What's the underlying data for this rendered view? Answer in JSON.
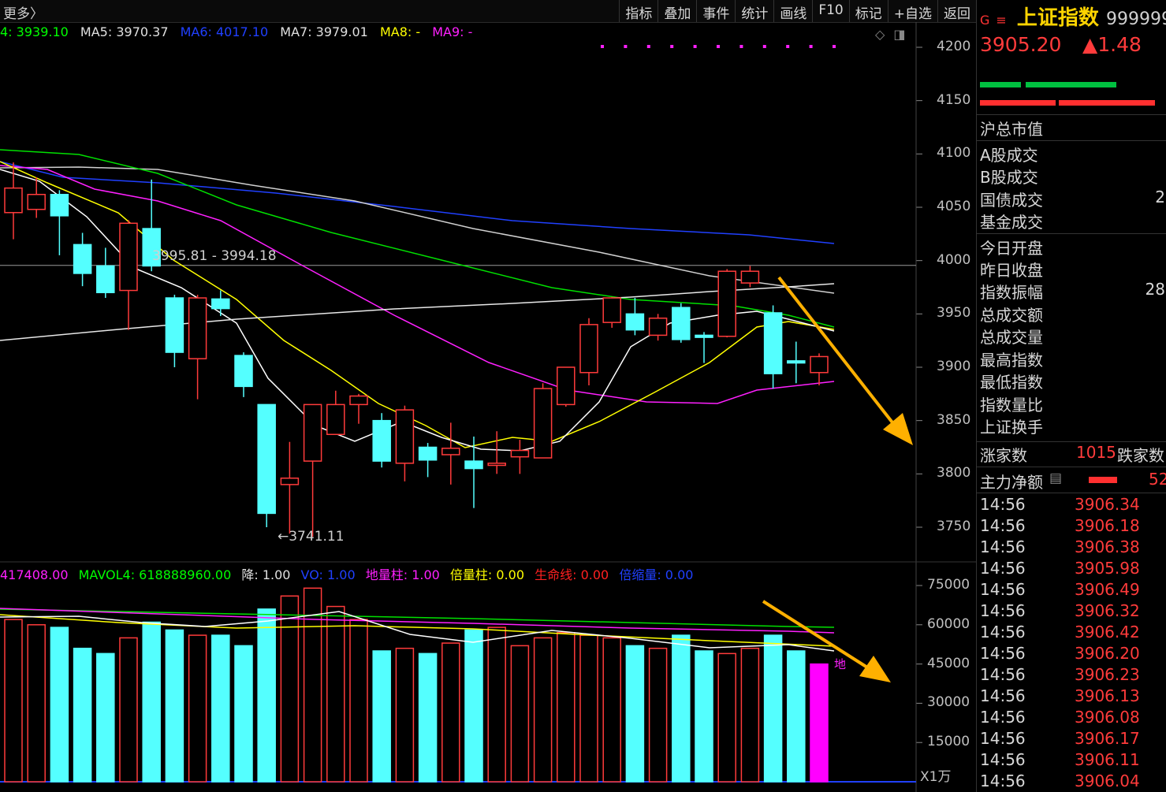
{
  "toolbar": {
    "more_label": "更多〉",
    "menu": [
      "指标",
      "叠加",
      "事件",
      "统计",
      "画线",
      "F10",
      "标记",
      "+自选",
      "返回"
    ]
  },
  "price_panel": {
    "ma_legend": [
      {
        "label": "4: 3939.10",
        "color": "#00ff00"
      },
      {
        "label": "MA5: 3970.37",
        "color": "#e0e0e0"
      },
      {
        "label": "MA6: 4017.10",
        "color": "#2040ff"
      },
      {
        "label": "MA7: 3979.01",
        "color": "#e0e0e0"
      },
      {
        "label": "MA8: -",
        "color": "#ffff00"
      },
      {
        "label": "MA9: -",
        "color": "#ff20ff"
      }
    ],
    "y_axis_ticks": [
      "4200",
      "4150",
      "4100",
      "4050",
      "4000",
      "3950",
      "3900",
      "3850",
      "3800",
      "3750"
    ],
    "hline_label": "3995.81 - 3994.18",
    "low_label": "←3741.11"
  },
  "volume_panel": {
    "legend": [
      {
        "label": "417408.00",
        "color": "#ff20ff"
      },
      {
        "label": "MAVOL4: 618888960.00",
        "color": "#00ff00"
      },
      {
        "label": "降: 1.00",
        "color": "#e0e0e0"
      },
      {
        "label": "VO: 1.00",
        "color": "#2040ff"
      },
      {
        "label": "地量柱: 1.00",
        "color": "#ff20ff"
      },
      {
        "label": "倍量柱: 0.00",
        "color": "#ffff00"
      },
      {
        "label": "生命线: 0.00",
        "color": "#ff2020"
      },
      {
        "label": "倍缩量: 0.00",
        "color": "#2040ff"
      }
    ],
    "y_axis_ticks": [
      "75000",
      "60000",
      "45000",
      "30000",
      "15000"
    ],
    "unit_label": "X1万",
    "marker_label": "地"
  },
  "quote": {
    "badge": "G",
    "name": "上证指数",
    "code": "999999",
    "price": "3905.20",
    "change": "▲1.48",
    "fields": [
      {
        "label": "沪总市值",
        "value": ""
      },
      {
        "label": "A股成交",
        "value": ""
      },
      {
        "label": "B股成交",
        "value": ""
      },
      {
        "label": "国债成交",
        "value": "2"
      },
      {
        "label": "基金成交",
        "value": ""
      },
      {
        "label": "今日开盘",
        "value": ""
      },
      {
        "label": "昨日收盘",
        "value": ""
      },
      {
        "label": "指数振幅",
        "value": "28"
      },
      {
        "label": "总成交额",
        "value": ""
      },
      {
        "label": "总成交量",
        "value": ""
      },
      {
        "label": "最高指数",
        "value": ""
      },
      {
        "label": "最低指数",
        "value": ""
      },
      {
        "label": "指数量比",
        "value": ""
      },
      {
        "label": "上证换手",
        "value": ""
      }
    ],
    "advance_label": "涨家数",
    "advance_value": "1015",
    "decline_label": "跌家数",
    "main_flow_label": "主力净额",
    "main_flow_value": "52",
    "ticks": [
      {
        "time": "14:56",
        "price": "3906.34"
      },
      {
        "time": "14:56",
        "price": "3906.18"
      },
      {
        "time": "14:56",
        "price": "3906.38"
      },
      {
        "time": "14:56",
        "price": "3905.98"
      },
      {
        "time": "14:56",
        "price": "3906.49"
      },
      {
        "time": "14:56",
        "price": "3906.32"
      },
      {
        "time": "14:56",
        "price": "3906.42"
      },
      {
        "time": "14:56",
        "price": "3906.20"
      },
      {
        "time": "14:56",
        "price": "3906.23"
      },
      {
        "time": "14:56",
        "price": "3906.13"
      },
      {
        "time": "14:56",
        "price": "3906.08"
      },
      {
        "time": "14:56",
        "price": "3906.17"
      },
      {
        "time": "14:56",
        "price": "3906.11"
      },
      {
        "time": "14:56",
        "price": "3906.04"
      }
    ]
  },
  "colors": {
    "up": "#ff3b3b",
    "down": "#54ffff",
    "arrow": "#ffb000",
    "background": "#000000"
  },
  "candles": [
    {
      "o": 4045,
      "c": 4068,
      "h": 4092,
      "l": 4020
    },
    {
      "o": 4048,
      "c": 4062,
      "h": 4078,
      "l": 4040
    },
    {
      "o": 4062,
      "c": 4042,
      "h": 4066,
      "l": 4005
    },
    {
      "o": 4015,
      "c": 3988,
      "h": 4026,
      "l": 3976
    },
    {
      "o": 3995,
      "c": 3970,
      "h": 4012,
      "l": 3965
    },
    {
      "o": 3972,
      "c": 4035,
      "h": 4038,
      "l": 3935
    },
    {
      "o": 4030,
      "c": 3995,
      "h": 4076,
      "l": 3990
    },
    {
      "o": 3965,
      "c": 3914,
      "h": 3968,
      "l": 3900
    },
    {
      "o": 3908,
      "c": 3965,
      "h": 3968,
      "l": 3870
    },
    {
      "o": 3964,
      "c": 3955,
      "h": 3972,
      "l": 3948
    },
    {
      "o": 3911,
      "c": 3882,
      "h": 3914,
      "l": 3872
    },
    {
      "o": 3865,
      "c": 3763,
      "h": 3865,
      "l": 3750
    },
    {
      "o": 3790,
      "c": 3796,
      "h": 3830,
      "l": 3744
    },
    {
      "o": 3812,
      "c": 3865,
      "h": 3865,
      "l": 3741
    },
    {
      "o": 3837,
      "c": 3865,
      "h": 3878,
      "l": 3837
    },
    {
      "o": 3865,
      "c": 3873,
      "h": 3875,
      "l": 3847
    },
    {
      "o": 3850,
      "c": 3812,
      "h": 3857,
      "l": 3806
    },
    {
      "o": 3810,
      "c": 3860,
      "h": 3864,
      "l": 3793
    },
    {
      "o": 3825,
      "c": 3813,
      "h": 3829,
      "l": 3797
    },
    {
      "o": 3818,
      "c": 3824,
      "h": 3848,
      "l": 3790
    },
    {
      "o": 3812,
      "c": 3805,
      "h": 3835,
      "l": 3768
    },
    {
      "o": 3808,
      "c": 3810,
      "h": 3840,
      "l": 3800
    },
    {
      "o": 3816,
      "c": 3822,
      "h": 3832,
      "l": 3800
    },
    {
      "o": 3815,
      "c": 3880,
      "h": 3885,
      "l": 3815
    },
    {
      "o": 3865,
      "c": 3900,
      "h": 3900,
      "l": 3863
    },
    {
      "o": 3895,
      "c": 3940,
      "h": 3946,
      "l": 3883
    },
    {
      "o": 3942,
      "c": 3965,
      "h": 3966,
      "l": 3937
    },
    {
      "o": 3950,
      "c": 3935,
      "h": 3965,
      "l": 3930
    },
    {
      "o": 3930,
      "c": 3946,
      "h": 3950,
      "l": 3925
    },
    {
      "o": 3956,
      "c": 3926,
      "h": 3960,
      "l": 3923
    },
    {
      "o": 3930,
      "c": 3928,
      "h": 3933,
      "l": 3904
    },
    {
      "o": 3929,
      "c": 3990,
      "h": 3992,
      "l": 3928
    },
    {
      "o": 3979,
      "c": 3990,
      "h": 3995,
      "l": 3975
    },
    {
      "o": 3951,
      "c": 3894,
      "h": 3958,
      "l": 3880
    },
    {
      "o": 3906,
      "c": 3904,
      "h": 3924,
      "l": 3885
    },
    {
      "o": 3895,
      "c": 3910,
      "h": 3913,
      "l": 3883
    }
  ],
  "volumes": [
    62000,
    60000,
    59000,
    51000,
    49000,
    55000,
    61000,
    58000,
    56000,
    56000,
    52000,
    66000,
    71000,
    74000,
    67000,
    62000,
    50000,
    51000,
    49000,
    53000,
    58000,
    59000,
    52000,
    55000,
    57000,
    56000,
    55000,
    52000,
    51000,
    56000,
    50000,
    49000,
    51000,
    56000,
    50000,
    45000
  ]
}
